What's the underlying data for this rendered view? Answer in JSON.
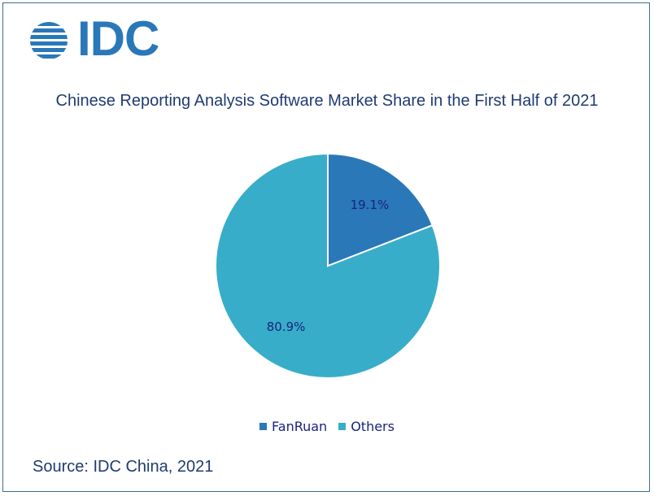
{
  "logo": {
    "text": "IDC",
    "icon": "globe-stripes-icon",
    "color": "#2a78b8"
  },
  "chart_data": {
    "type": "pie",
    "title": "Chinese Reporting Analysis Software Market Share in the First Half of 2021",
    "categories": [
      "FanRuan",
      "Others"
    ],
    "values": [
      19.1,
      80.9
    ],
    "data_labels": [
      "19.1%",
      "80.9%"
    ],
    "colors": [
      "#2a78b8",
      "#38adc9"
    ],
    "legend": "bottom"
  },
  "source": "Source: IDC China, 2021"
}
